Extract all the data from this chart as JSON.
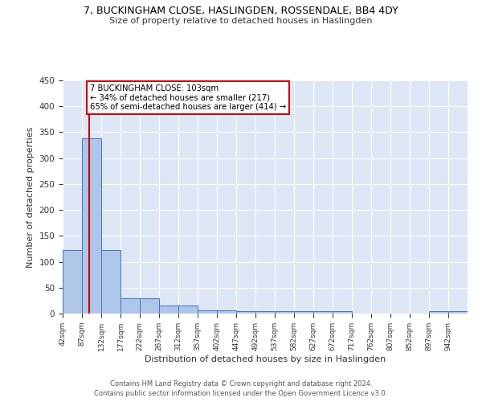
{
  "title": "7, BUCKINGHAM CLOSE, HASLINGDEN, ROSSENDALE, BB4 4DY",
  "subtitle": "Size of property relative to detached houses in Haslingden",
  "xlabel": "Distribution of detached houses by size in Haslingden",
  "ylabel": "Number of detached properties",
  "footnote1": "Contains HM Land Registry data © Crown copyright and database right 2024.",
  "footnote2": "Contains public sector information licensed under the Open Government Licence v3.0.",
  "annotation_line1": "7 BUCKINGHAM CLOSE: 103sqm",
  "annotation_line2": "← 34% of detached houses are smaller (217)",
  "annotation_line3": "65% of semi-detached houses are larger (414) →",
  "bar_edges": [
    42,
    87,
    132,
    177,
    222,
    267,
    312,
    357,
    402,
    447,
    492,
    537,
    582,
    627,
    672,
    717,
    762,
    807,
    852,
    897,
    942
  ],
  "bar_heights": [
    122,
    338,
    122,
    30,
    30,
    16,
    16,
    6,
    6,
    4,
    4,
    4,
    4,
    5,
    5,
    0,
    0,
    0,
    0,
    4,
    4
  ],
  "property_size": 103,
  "bar_color": "#aec6e8",
  "bar_edge_color": "#4472c4",
  "red_line_color": "#cc0000",
  "annotation_box_color": "#cc0000",
  "background_color": "#dde6f4",
  "ylim": [
    0,
    450
  ],
  "yticks": [
    0,
    50,
    100,
    150,
    200,
    250,
    300,
    350,
    400,
    450
  ]
}
